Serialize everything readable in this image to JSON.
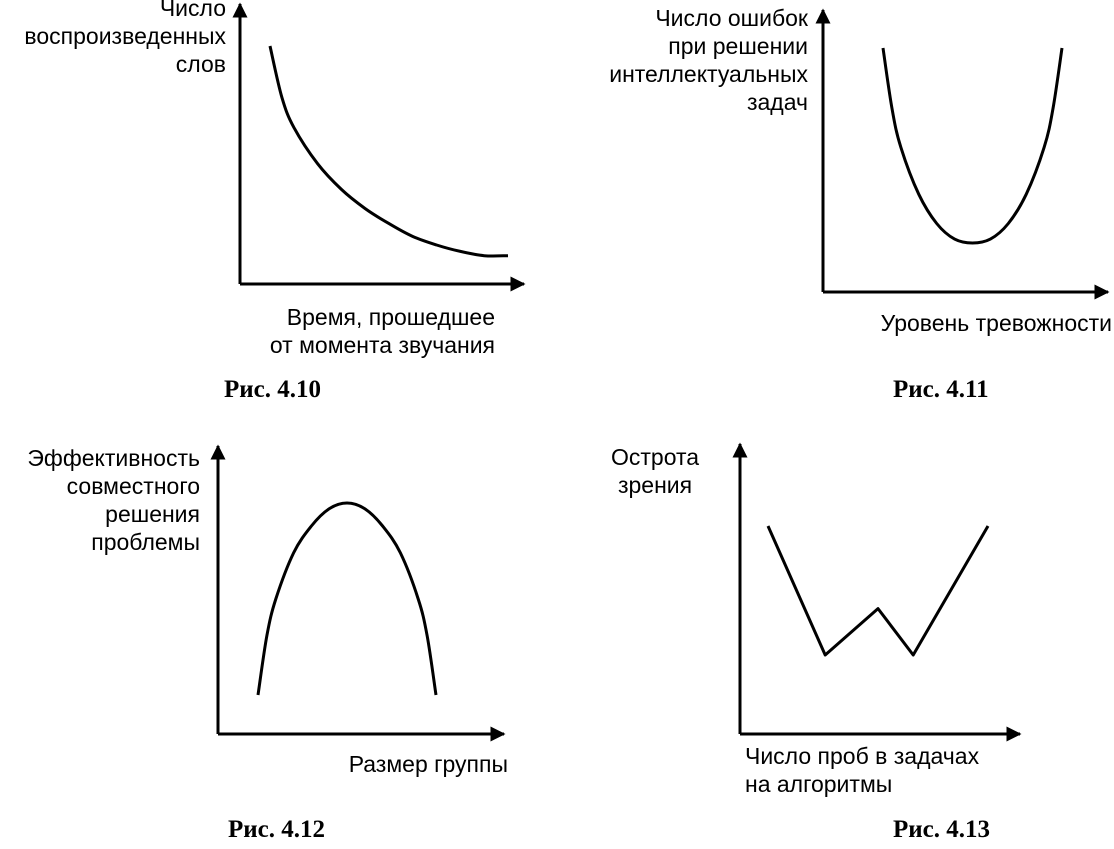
{
  "chart_data": [
    {
      "type": "line",
      "caption": "Рис. 4.10",
      "ylabel": [
        "Число",
        "воспроизведенных",
        "слов"
      ],
      "xlabel": [
        "Время, прошедшее",
        "от момента звучания"
      ],
      "x": [
        0,
        0.05,
        0.1,
        0.2,
        0.3,
        0.4,
        0.5,
        0.6,
        0.7,
        0.8,
        0.9,
        1.0
      ],
      "values": [
        1.0,
        0.76,
        0.62,
        0.45,
        0.33,
        0.24,
        0.17,
        0.11,
        0.07,
        0.04,
        0.02,
        0.02
      ],
      "grid": false
    },
    {
      "type": "line",
      "caption": "Рис. 4.11",
      "ylabel": [
        "Число ошибок",
        "при решении",
        "интеллектуальных",
        "задач"
      ],
      "xlabel": [
        "Уровень тревожности"
      ],
      "x": [
        0,
        0.05,
        0.1,
        0.2,
        0.3,
        0.4,
        0.5,
        0.6,
        0.7,
        0.8,
        0.9,
        0.95,
        1.0
      ],
      "values": [
        1.0,
        0.69,
        0.49,
        0.25,
        0.1,
        0.02,
        0.0,
        0.02,
        0.1,
        0.25,
        0.49,
        0.69,
        1.0
      ],
      "grid": false
    },
    {
      "type": "line",
      "caption": "Рис. 4.12",
      "ylabel": [
        "Эффективность",
        "совместного",
        "решения",
        "проблемы"
      ],
      "xlabel": [
        "Размер группы"
      ],
      "x": [
        0,
        0.05,
        0.1,
        0.2,
        0.3,
        0.4,
        0.5,
        0.6,
        0.7,
        0.8,
        0.9,
        0.95,
        1.0
      ],
      "values": [
        0.0,
        0.31,
        0.5,
        0.74,
        0.88,
        0.97,
        1.0,
        0.97,
        0.88,
        0.74,
        0.5,
        0.31,
        0.0
      ],
      "grid": false
    },
    {
      "type": "line",
      "caption": "Рис. 4.13",
      "ylabel": [
        "Острота",
        "зрения"
      ],
      "xlabel": [
        "Число проб в задачах",
        "на алгоритмы"
      ],
      "x": [
        0,
        0.26,
        0.5,
        0.66,
        1.0
      ],
      "values": [
        1.0,
        0.0,
        0.36,
        0.0,
        1.0
      ],
      "grid": false
    }
  ]
}
